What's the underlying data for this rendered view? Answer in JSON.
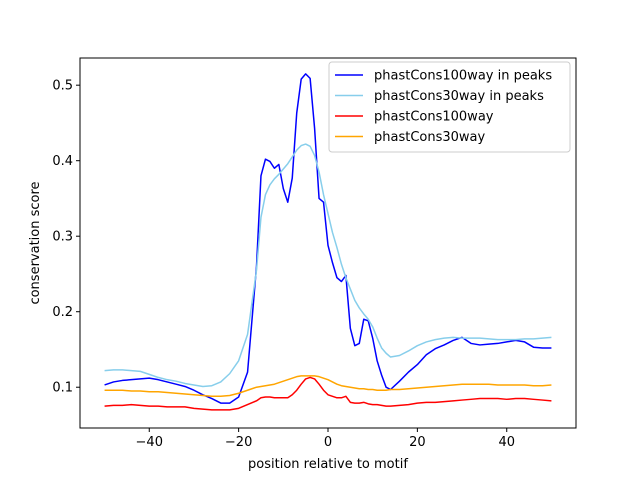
{
  "chart_data": {
    "type": "line",
    "xlabel": "position relative to motif",
    "ylabel": "conservation score",
    "xlim": [
      -55.5,
      55.5
    ],
    "ylim": [
      0.046,
      0.536
    ],
    "xticks": [
      -40,
      -20,
      0,
      20,
      40
    ],
    "yticks": [
      0.1,
      0.2,
      0.3,
      0.4,
      0.5
    ],
    "xtick_labels": [
      "−40",
      "−20",
      "0",
      "20",
      "40"
    ],
    "ytick_labels": [
      "0.1",
      "0.2",
      "0.3",
      "0.4",
      "0.5"
    ],
    "legend_position": "top-right",
    "x": [
      -50,
      -48,
      -46,
      -44,
      -42,
      -40,
      -38,
      -36,
      -34,
      -32,
      -30,
      -28,
      -26,
      -24,
      -22,
      -20,
      -18,
      -16,
      -15,
      -14,
      -13,
      -12,
      -11,
      -10,
      -9,
      -8,
      -7,
      -6,
      -5,
      -4,
      -3,
      -2,
      -1,
      0,
      1,
      2,
      3,
      4,
      5,
      6,
      7,
      8,
      9,
      10,
      11,
      12,
      13,
      14,
      16,
      18,
      20,
      22,
      24,
      26,
      28,
      30,
      32,
      34,
      36,
      38,
      40,
      42,
      44,
      46,
      48,
      50
    ],
    "series": [
      {
        "name": "phastCons100way in peaks",
        "color": "#0000ff",
        "values": [
          0.103,
          0.107,
          0.109,
          0.11,
          0.111,
          0.112,
          0.11,
          0.107,
          0.104,
          0.101,
          0.096,
          0.09,
          0.085,
          0.079,
          0.079,
          0.087,
          0.12,
          0.26,
          0.38,
          0.402,
          0.399,
          0.39,
          0.395,
          0.363,
          0.345,
          0.377,
          0.463,
          0.508,
          0.515,
          0.509,
          0.443,
          0.35,
          0.345,
          0.288,
          0.265,
          0.245,
          0.24,
          0.248,
          0.178,
          0.155,
          0.158,
          0.19,
          0.188,
          0.165,
          0.135,
          0.116,
          0.1,
          0.097,
          0.108,
          0.12,
          0.13,
          0.143,
          0.151,
          0.156,
          0.162,
          0.166,
          0.158,
          0.156,
          0.157,
          0.158,
          0.16,
          0.162,
          0.16,
          0.153,
          0.152,
          0.152
        ]
      },
      {
        "name": "phastCons30way in peaks",
        "color": "#87ceeb",
        "values": [
          0.122,
          0.123,
          0.123,
          0.122,
          0.121,
          0.117,
          0.113,
          0.11,
          0.108,
          0.105,
          0.103,
          0.101,
          0.102,
          0.107,
          0.118,
          0.135,
          0.17,
          0.255,
          0.325,
          0.355,
          0.368,
          0.376,
          0.382,
          0.389,
          0.396,
          0.405,
          0.414,
          0.42,
          0.422,
          0.419,
          0.407,
          0.385,
          0.355,
          0.33,
          0.305,
          0.285,
          0.263,
          0.245,
          0.23,
          0.215,
          0.205,
          0.197,
          0.19,
          0.18,
          0.165,
          0.152,
          0.145,
          0.14,
          0.142,
          0.148,
          0.155,
          0.16,
          0.163,
          0.165,
          0.166,
          0.165,
          0.165,
          0.165,
          0.164,
          0.163,
          0.163,
          0.163,
          0.164,
          0.164,
          0.165,
          0.166
        ]
      },
      {
        "name": "phastCons100way",
        "color": "#ff0000",
        "values": [
          0.075,
          0.076,
          0.076,
          0.077,
          0.076,
          0.075,
          0.075,
          0.074,
          0.074,
          0.074,
          0.072,
          0.071,
          0.07,
          0.07,
          0.07,
          0.072,
          0.077,
          0.082,
          0.086,
          0.087,
          0.087,
          0.086,
          0.086,
          0.086,
          0.086,
          0.09,
          0.096,
          0.104,
          0.111,
          0.113,
          0.111,
          0.104,
          0.096,
          0.09,
          0.088,
          0.086,
          0.086,
          0.088,
          0.08,
          0.079,
          0.079,
          0.08,
          0.078,
          0.077,
          0.077,
          0.076,
          0.075,
          0.075,
          0.076,
          0.077,
          0.079,
          0.08,
          0.08,
          0.081,
          0.082,
          0.083,
          0.084,
          0.085,
          0.085,
          0.085,
          0.084,
          0.085,
          0.085,
          0.084,
          0.083,
          0.082
        ]
      },
      {
        "name": "phastCons30way",
        "color": "#ffa500",
        "values": [
          0.096,
          0.096,
          0.096,
          0.095,
          0.095,
          0.094,
          0.094,
          0.093,
          0.092,
          0.091,
          0.09,
          0.089,
          0.088,
          0.088,
          0.089,
          0.092,
          0.096,
          0.1,
          0.101,
          0.102,
          0.103,
          0.104,
          0.106,
          0.108,
          0.11,
          0.112,
          0.114,
          0.115,
          0.115,
          0.115,
          0.115,
          0.114,
          0.112,
          0.11,
          0.107,
          0.104,
          0.102,
          0.101,
          0.1,
          0.099,
          0.098,
          0.098,
          0.097,
          0.097,
          0.096,
          0.096,
          0.096,
          0.097,
          0.097,
          0.098,
          0.099,
          0.1,
          0.101,
          0.102,
          0.103,
          0.104,
          0.104,
          0.104,
          0.104,
          0.103,
          0.103,
          0.103,
          0.103,
          0.102,
          0.102,
          0.103
        ]
      }
    ]
  }
}
